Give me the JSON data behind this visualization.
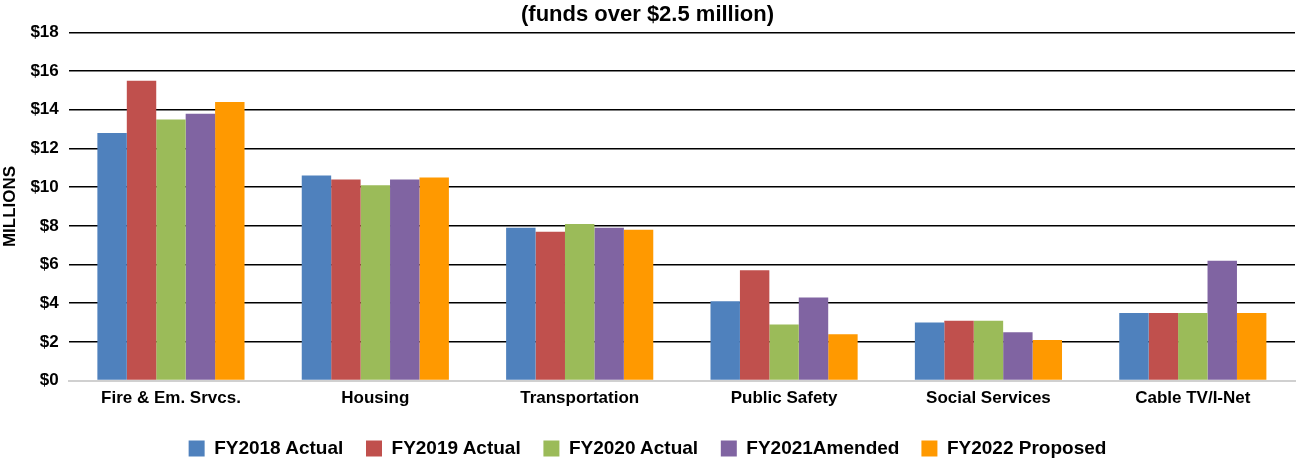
{
  "chart_data": {
    "type": "bar",
    "title": "(funds over $2.5 million)",
    "ylabel": "MILLIONS",
    "categories": [
      "Fire & Em. Srvcs.",
      "Housing",
      "Transportation",
      "Public Safety",
      "Social Services",
      "Cable TV/I-Net"
    ],
    "series": [
      {
        "name": "FY2018 Actual",
        "color": "#4f81bd",
        "values": [
          12.8,
          10.6,
          7.9,
          4.1,
          3.0,
          3.5
        ]
      },
      {
        "name": "FY2019 Actual",
        "color": "#c0504d",
        "values": [
          15.5,
          10.4,
          7.7,
          5.7,
          3.1,
          3.5
        ]
      },
      {
        "name": "FY2020 Actual",
        "color": "#9bbb59",
        "values": [
          13.5,
          10.1,
          8.1,
          2.9,
          3.1,
          3.5
        ]
      },
      {
        "name": "FY2021Amended",
        "color": "#8064a2",
        "values": [
          13.8,
          10.4,
          7.9,
          4.3,
          2.5,
          6.2
        ]
      },
      {
        "name": "FY2022 Proposed",
        "color": "#ff9900",
        "values": [
          14.4,
          10.5,
          7.8,
          2.4,
          2.1,
          3.5
        ]
      }
    ],
    "ylim": [
      0,
      18
    ],
    "yticks": [
      {
        "value": 0,
        "label": "$0"
      },
      {
        "value": 2,
        "label": "$2"
      },
      {
        "value": 4,
        "label": "$4"
      },
      {
        "value": 6,
        "label": "$6"
      },
      {
        "value": 8,
        "label": "$8"
      },
      {
        "value": 10,
        "label": "$10"
      },
      {
        "value": 12,
        "label": "$12"
      },
      {
        "value": 14,
        "label": "$14"
      },
      {
        "value": 16,
        "label": "$16"
      },
      {
        "value": 18,
        "label": "$18"
      }
    ],
    "grid": "y",
    "legend": "bottom"
  }
}
